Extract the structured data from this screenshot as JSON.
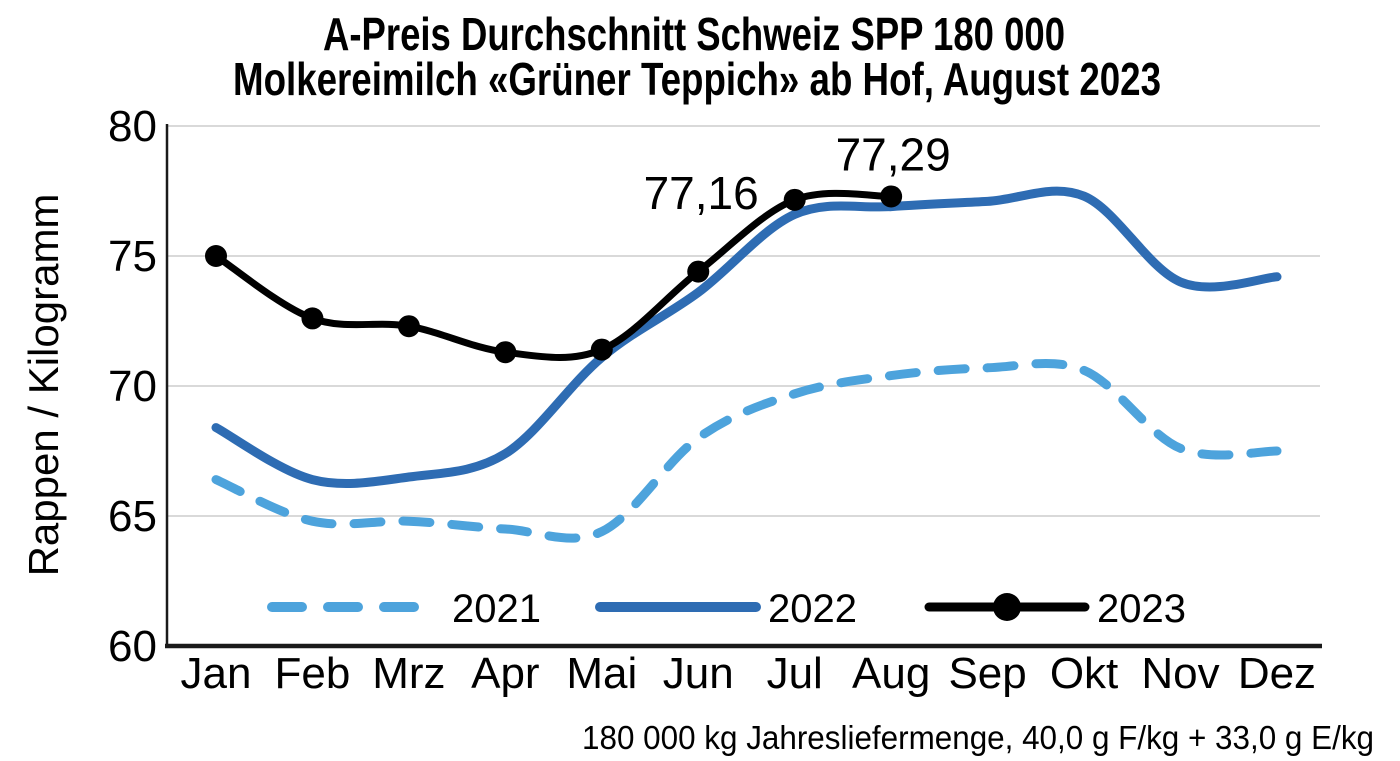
{
  "title": {
    "line1": "A-Preis Durchschnitt Schweiz SPP 180 000",
    "line2": "Molkereimilch «Grüner Teppich» ab Hof, August 2023"
  },
  "footer": "180 000 kg Jahresliefermenge, 40,0 g F/kg + 33,0 g E/kg",
  "chart_data": {
    "type": "line",
    "title": "A-Preis Durchschnitt Schweiz SPP 180 000 — Molkereimilch «Grüner Teppich» ab Hof, August 2023",
    "xlabel": "",
    "ylabel": "Rappen / Kilogramm",
    "ylim": [
      60,
      80
    ],
    "yticks": [
      60,
      65,
      70,
      75,
      80
    ],
    "grid": "horizontal",
    "legend_position": "bottom-inside",
    "categories": [
      "Jan",
      "Feb",
      "Mrz",
      "Apr",
      "Mai",
      "Jun",
      "Jul",
      "Aug",
      "Sep",
      "Okt",
      "Nov",
      "Dez"
    ],
    "series": [
      {
        "name": "2021",
        "style": "dashed",
        "color": "#4da3dc",
        "values": [
          66.4,
          64.8,
          64.8,
          64.5,
          64.4,
          68.0,
          69.7,
          70.4,
          70.7,
          70.6,
          67.6,
          67.5
        ]
      },
      {
        "name": "2022",
        "style": "solid",
        "color": "#2e6cb3",
        "values": [
          68.4,
          66.4,
          66.5,
          67.4,
          71.1,
          73.6,
          76.6,
          76.9,
          77.1,
          77.3,
          74.0,
          74.2
        ]
      },
      {
        "name": "2023",
        "style": "solid-markers",
        "color": "#000000",
        "values": [
          75.0,
          72.6,
          72.3,
          71.3,
          71.4,
          74.4,
          77.16,
          77.29,
          null,
          null,
          null,
          null
        ]
      }
    ],
    "annotations": [
      {
        "series": "2023",
        "category": "Jul",
        "label": "77,16",
        "position": "left"
      },
      {
        "series": "2023",
        "category": "Aug",
        "label": "77,29",
        "position": "above"
      }
    ],
    "colors": {
      "grid": "#d9d9d9",
      "axis": "#1a1a1a",
      "text": "#000000"
    }
  }
}
